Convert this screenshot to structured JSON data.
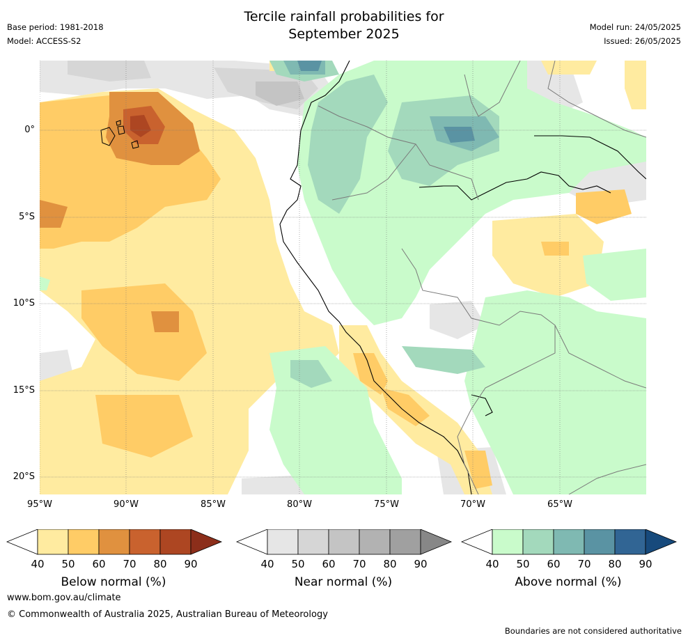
{
  "header": {
    "title_line1": "Tercile rainfall probabilities for",
    "title_line2": "September 2025",
    "base_period": "Base period: 1981-2018",
    "model": "Model: ACCESS-S2",
    "model_run": "Model run: 24/05/2025",
    "issued": "Issued: 26/05/2025"
  },
  "map": {
    "lon_range": [
      -95,
      -60
    ],
    "lat_range": [
      -21,
      4
    ],
    "lat_labels": [
      "0°",
      "5°S",
      "10°S",
      "15°S",
      "20°S"
    ],
    "lat_values": [
      0,
      -5,
      -10,
      -15,
      -20
    ],
    "lon_labels": [
      "95°W",
      "90°W",
      "85°W",
      "80°W",
      "75°W",
      "70°W",
      "65°W"
    ],
    "lon_values": [
      -95,
      -90,
      -85,
      -80,
      -75,
      -70,
      -65
    ]
  },
  "legends": [
    {
      "title": "Below normal (%)",
      "ticks": [
        "40",
        "50",
        "60",
        "70",
        "80",
        "90"
      ],
      "colors": [
        "#ffeba0",
        "#ffcc66",
        "#e0913f",
        "#c9622e",
        "#ad4622",
        "#8c2e1a"
      ]
    },
    {
      "title": "Near normal (%)",
      "ticks": [
        "40",
        "50",
        "60",
        "70",
        "80",
        "90"
      ],
      "colors": [
        "#e6e6e6",
        "#d6d6d6",
        "#c4c4c4",
        "#b2b2b2",
        "#a0a0a0",
        "#878787"
      ]
    },
    {
      "title": "Above normal (%)",
      "ticks": [
        "40",
        "50",
        "60",
        "70",
        "80",
        "90"
      ],
      "colors": [
        "#c9fbcb",
        "#a3d9bc",
        "#7fb9b2",
        "#5a93a3",
        "#316594",
        "#174a7c"
      ]
    }
  ],
  "footer": {
    "url": "www.bom.gov.au/climate",
    "copyright": "© Commonwealth of Australia 2025, Australian Bureau of Meteorology",
    "note": "Boundaries are not considered authoritative"
  }
}
